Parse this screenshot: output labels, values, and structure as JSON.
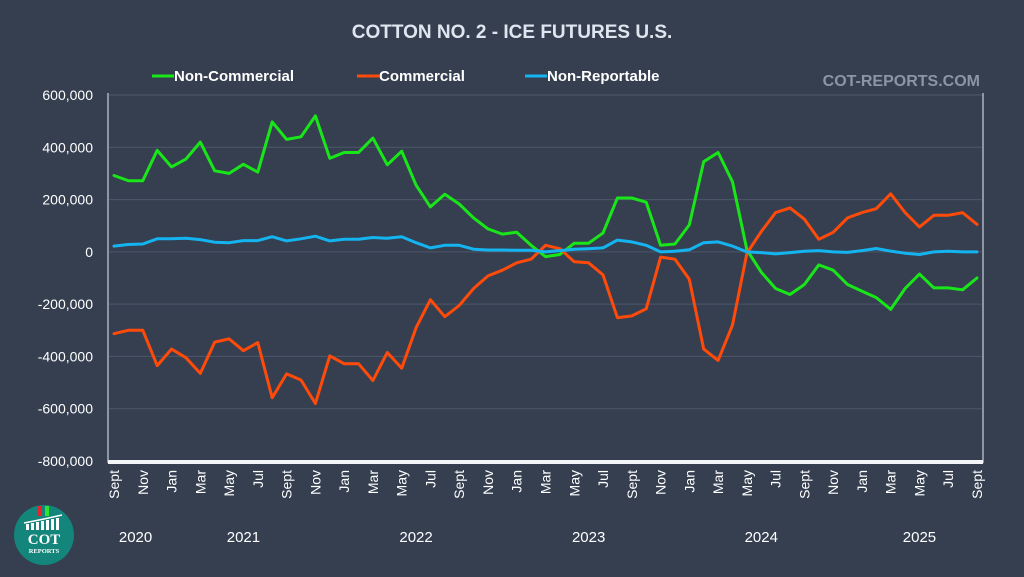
{
  "chart_data": {
    "type": "line",
    "title": "COTTON NO. 2 - ICE FUTURES U.S.",
    "watermark": "COT-REPORTS.COM",
    "xlabel": "",
    "ylabel": "",
    "ylim": [
      -800000,
      600000
    ],
    "yticks": [
      600000,
      400000,
      200000,
      0,
      -200000,
      -400000,
      -600000,
      -800000
    ],
    "ytick_labels": [
      "600,000",
      "400,000",
      "200,000",
      "0",
      "-200,000",
      "-400,000",
      "-600,000",
      "-800,000"
    ],
    "grid": true,
    "legend_position": "top",
    "x_tick_labels": [
      "Sept",
      "Nov",
      "Jan",
      "Mar",
      "May",
      "Jul",
      "Sept",
      "Nov",
      "Jan",
      "Mar",
      "May",
      "Jul",
      "Sept",
      "Nov",
      "Jan",
      "Mar",
      "May",
      "Jul",
      "Sept",
      "Nov",
      "Jan",
      "Mar",
      "May",
      "Jul",
      "Sept",
      "Nov",
      "Jan",
      "Mar",
      "May",
      "Jul",
      "Sept"
    ],
    "year_labels": [
      {
        "label": "2020",
        "month_index": 1.5
      },
      {
        "label": "2021",
        "month_index": 9
      },
      {
        "label": "2022",
        "month_index": 21
      },
      {
        "label": "2023",
        "month_index": 33
      },
      {
        "label": "2024",
        "month_index": 45
      },
      {
        "label": "2025",
        "month_index": 56
      }
    ],
    "x_period": "monthly, Sept 2020 - Sept 2025",
    "series": [
      {
        "name": "Non-Commercial",
        "color": "#19e619",
        "values": [
          292000,
          272000,
          272000,
          388000,
          325000,
          355000,
          420000,
          310000,
          300000,
          335000,
          305000,
          497000,
          430000,
          440000,
          520000,
          358000,
          380000,
          380000,
          435000,
          333000,
          385000,
          255000,
          172000,
          220000,
          183000,
          130000,
          88000,
          68000,
          75000,
          25000,
          -18000,
          -10000,
          33000,
          33000,
          72000,
          206000,
          206000,
          190000,
          25000,
          30000,
          103000,
          345000,
          380000,
          268000,
          8000,
          -78000,
          -140000,
          -163000,
          -125000,
          -50000,
          -70000,
          -125000,
          -150000,
          -175000,
          -220000,
          -140000,
          -85000,
          -138000,
          -138000,
          -145000,
          -100000
        ]
      },
      {
        "name": "Commercial",
        "color": "#ff4a0a",
        "values": [
          -313000,
          -300000,
          -300000,
          -435000,
          -372000,
          -405000,
          -465000,
          -345000,
          -333000,
          -378000,
          -347000,
          -558000,
          -467000,
          -490000,
          -580000,
          -398000,
          -428000,
          -428000,
          -492000,
          -385000,
          -445000,
          -290000,
          -183000,
          -248000,
          -205000,
          -140000,
          -92000,
          -70000,
          -42000,
          -28000,
          25000,
          12000,
          -38000,
          -42000,
          -88000,
          -252000,
          -245000,
          -218000,
          -20000,
          -28000,
          -105000,
          -372000,
          -415000,
          -280000,
          -5000,
          78000,
          150000,
          168000,
          125000,
          48000,
          75000,
          130000,
          150000,
          165000,
          222000,
          150000,
          95000,
          140000,
          140000,
          150000,
          105000
        ]
      },
      {
        "name": "Non-Reportable",
        "color": "#14b4f0",
        "values": [
          22000,
          28000,
          30000,
          50000,
          50000,
          52000,
          47000,
          37000,
          35000,
          43000,
          43000,
          58000,
          42000,
          50000,
          60000,
          42000,
          48000,
          48000,
          55000,
          52000,
          58000,
          35000,
          15000,
          25000,
          25000,
          10000,
          7000,
          7000,
          6000,
          6000,
          0,
          5000,
          10000,
          12000,
          15000,
          45000,
          38000,
          25000,
          0,
          2000,
          8000,
          35000,
          38000,
          22000,
          0,
          -3000,
          -8000,
          -3000,
          2000,
          5000,
          0,
          -2000,
          5000,
          13000,
          3000,
          -5000,
          -10000,
          0,
          2000,
          0,
          0
        ]
      }
    ]
  },
  "logo": {
    "line1": "COT",
    "line2": "REPORTS"
  }
}
